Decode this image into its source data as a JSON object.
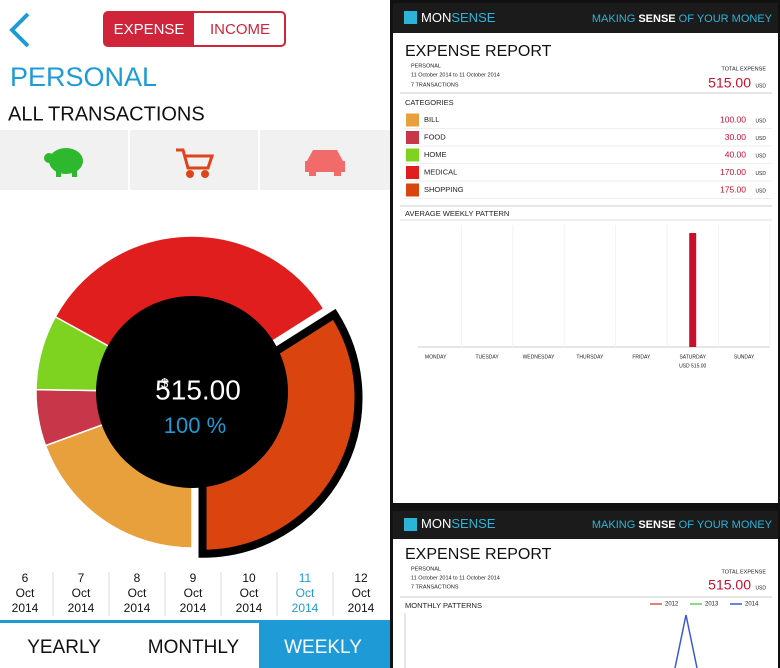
{
  "app": {
    "tabs": [
      "EXPENSE",
      "INCOME"
    ],
    "title": "PERSONAL",
    "subtitle": "ALL TRANSACTIONS",
    "total": {
      "currency": "$",
      "amount": "515.00",
      "percent": "100 %"
    },
    "dates": [
      {
        "day": "6",
        "month": "Oct",
        "year": "2014"
      },
      {
        "day": "7",
        "month": "Oct",
        "year": "2014"
      },
      {
        "day": "8",
        "month": "Oct",
        "year": "2014"
      },
      {
        "day": "9",
        "month": "Oct",
        "year": "2014"
      },
      {
        "day": "10",
        "month": "Oct",
        "year": "2014"
      },
      {
        "day": "11",
        "month": "Oct",
        "year": "2014",
        "active": true
      },
      {
        "day": "12",
        "month": "Oct",
        "year": "2014"
      }
    ],
    "periods": [
      {
        "label": "YEARLY"
      },
      {
        "label": "MONTHLY"
      },
      {
        "label": "WEEKLY",
        "active": true
      }
    ]
  },
  "report": {
    "brand": [
      "MON",
      "SENSE"
    ],
    "tagline": [
      "MAKING ",
      "SENSE",
      " OF YOUR MONEY"
    ],
    "title": "EXPENSE REPORT",
    "account": "PERSONAL",
    "period": "11 October 2014 to 11 October 2014",
    "transactions": "7 TRANSACTIONS",
    "total_label": "TOTAL EXPENSE",
    "total": "515.00",
    "unit": "USD",
    "categories": {
      "heading": "CATEGORIES",
      "names": [
        "BILL",
        "FOOD",
        "HOME",
        "MEDICAL",
        "SHOPPING"
      ],
      "values": [
        100,
        30,
        40,
        170,
        175
      ],
      "value_labels": [
        "100.00",
        "30.00",
        "40.00",
        "170.00",
        "175.00"
      ],
      "colors": [
        "#e8a03c",
        "#c8364a",
        "#7ed321",
        "#e01e1e",
        "#d9440f"
      ]
    },
    "weekly": {
      "heading": "AVERAGE WEEKLY PATTERN",
      "days": [
        "MONDAY",
        "TUESDAY",
        "WEDNESDAY",
        "THURSDAY",
        "FRIDAY",
        "SATURDAY",
        "SUNDAY"
      ],
      "values": [
        0,
        0,
        0,
        0,
        0,
        515,
        0
      ],
      "annotation": "USD 515.00",
      "color": "#c8102e"
    },
    "monthly": {
      "heading": "MONTHLY PATTERNS",
      "legend": [
        {
          "name": "2012",
          "color": "#e05050"
        },
        {
          "name": "2013",
          "color": "#66cc66"
        },
        {
          "name": "2014",
          "color": "#3a5bd0"
        }
      ]
    }
  }
}
